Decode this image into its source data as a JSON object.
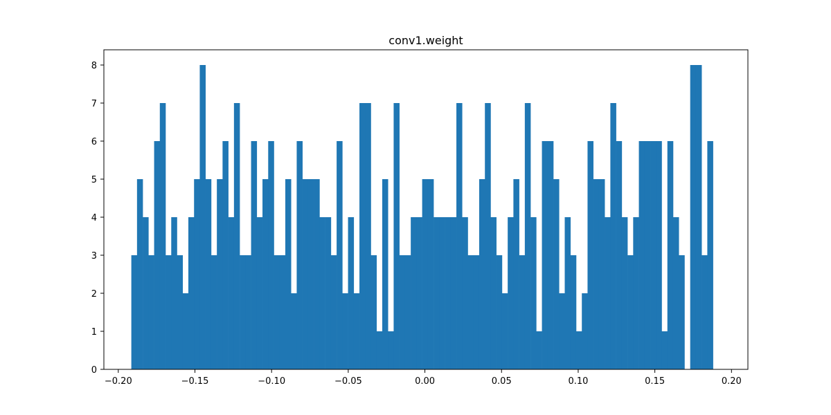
{
  "chart_data": {
    "type": "bar",
    "title": "conv1.weight",
    "xlabel": "",
    "ylabel": "",
    "xlim": [
      -0.2094,
      0.2107
    ],
    "ylim": [
      0,
      8.4
    ],
    "grid": false,
    "bar_color": "#1f77b4",
    "bin_start": -0.1915,
    "bin_width": 0.00372,
    "counts": [
      3,
      5,
      4,
      3,
      6,
      7,
      3,
      4,
      3,
      2,
      4,
      5,
      8,
      5,
      3,
      5,
      6,
      4,
      7,
      3,
      3,
      6,
      4,
      5,
      6,
      3,
      3,
      5,
      2,
      6,
      5,
      5,
      5,
      4,
      4,
      3,
      6,
      2,
      4,
      2,
      7,
      7,
      3,
      1,
      5,
      1,
      7,
      3,
      3,
      4,
      4,
      5,
      5,
      4,
      4,
      4,
      4,
      7,
      4,
      3,
      3,
      5,
      7,
      4,
      3,
      2,
      4,
      5,
      3,
      7,
      4,
      1,
      6,
      6,
      5,
      2,
      4,
      3,
      1,
      2,
      6,
      5,
      5,
      4,
      7,
      6,
      4,
      3,
      4,
      6,
      6,
      6,
      6,
      1,
      6,
      4,
      3,
      0,
      8,
      8,
      3,
      6
    ],
    "x_ticks": [
      {
        "value": -0.2,
        "label": "−0.20"
      },
      {
        "value": -0.15,
        "label": "−0.15"
      },
      {
        "value": -0.1,
        "label": "−0.10"
      },
      {
        "value": -0.05,
        "label": "−0.05"
      },
      {
        "value": 0.0,
        "label": "0.00"
      },
      {
        "value": 0.05,
        "label": "0.05"
      },
      {
        "value": 0.1,
        "label": "0.10"
      },
      {
        "value": 0.15,
        "label": "0.15"
      },
      {
        "value": 0.2,
        "label": "0.20"
      }
    ],
    "y_ticks": [
      {
        "value": 0,
        "label": "0"
      },
      {
        "value": 1,
        "label": "1"
      },
      {
        "value": 2,
        "label": "2"
      },
      {
        "value": 3,
        "label": "3"
      },
      {
        "value": 4,
        "label": "4"
      },
      {
        "value": 5,
        "label": "5"
      },
      {
        "value": 6,
        "label": "6"
      },
      {
        "value": 7,
        "label": "7"
      },
      {
        "value": 8,
        "label": "8"
      }
    ]
  }
}
